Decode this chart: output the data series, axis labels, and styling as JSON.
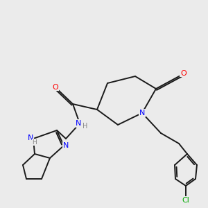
{
  "background_color": "#ebebeb",
  "bond_color": "#1a1a1a",
  "nitrogen_color": "#0000ff",
  "oxygen_color": "#ff0000",
  "chlorine_color": "#00aa00",
  "hydrogen_color": "#888888",
  "figsize": [
    3.0,
    3.0
  ],
  "dpi": 100,
  "xlim": [
    0,
    10
  ],
  "ylim": [
    0,
    10
  ],
  "lw": 1.4,
  "fs": 8.0
}
